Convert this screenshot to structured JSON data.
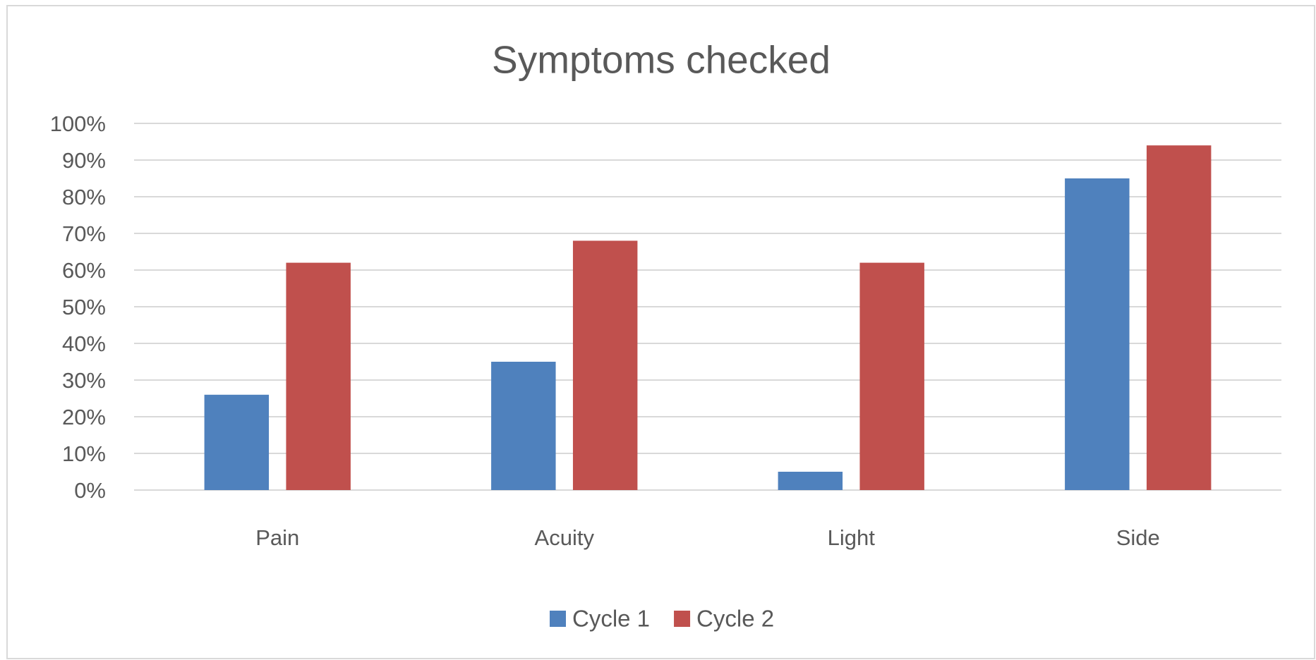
{
  "chart_data": {
    "type": "bar",
    "title": "Symptoms checked",
    "categories": [
      "Pain",
      "Acuity",
      "Light",
      "Side"
    ],
    "series": [
      {
        "name": "Cycle 1",
        "color": "#4f81bd",
        "values": [
          26,
          35,
          5,
          85
        ]
      },
      {
        "name": "Cycle 2",
        "color": "#c0504d",
        "values": [
          62,
          68,
          62,
          94
        ]
      }
    ],
    "ylim": [
      0,
      100
    ],
    "yticks": [
      {
        "value": 0,
        "label": "0%"
      },
      {
        "value": 10,
        "label": "10%"
      },
      {
        "value": 20,
        "label": "20%"
      },
      {
        "value": 30,
        "label": "30%"
      },
      {
        "value": 40,
        "label": "40%"
      },
      {
        "value": 50,
        "label": "50%"
      },
      {
        "value": 60,
        "label": "60%"
      },
      {
        "value": 70,
        "label": "70%"
      },
      {
        "value": 80,
        "label": "80%"
      },
      {
        "value": 90,
        "label": "90%"
      },
      {
        "value": 100,
        "label": "100%"
      }
    ],
    "grid": true,
    "legend": "bottom"
  }
}
